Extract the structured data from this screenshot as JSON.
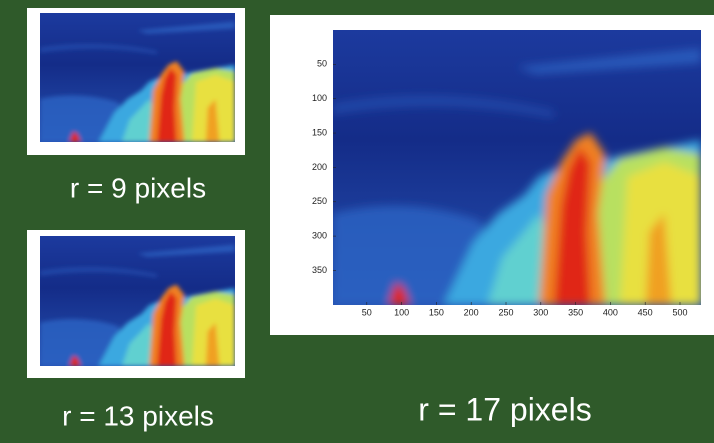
{
  "panels": [
    {
      "label": "r = 9 pixels"
    },
    {
      "label": "r = 13 pixels"
    },
    {
      "label": "r = 17 pixels",
      "xticks": [
        50,
        100,
        150,
        200,
        250,
        300,
        350,
        400,
        450,
        500
      ],
      "yticks": [
        50,
        100,
        150,
        200,
        250,
        300,
        350
      ]
    }
  ]
}
